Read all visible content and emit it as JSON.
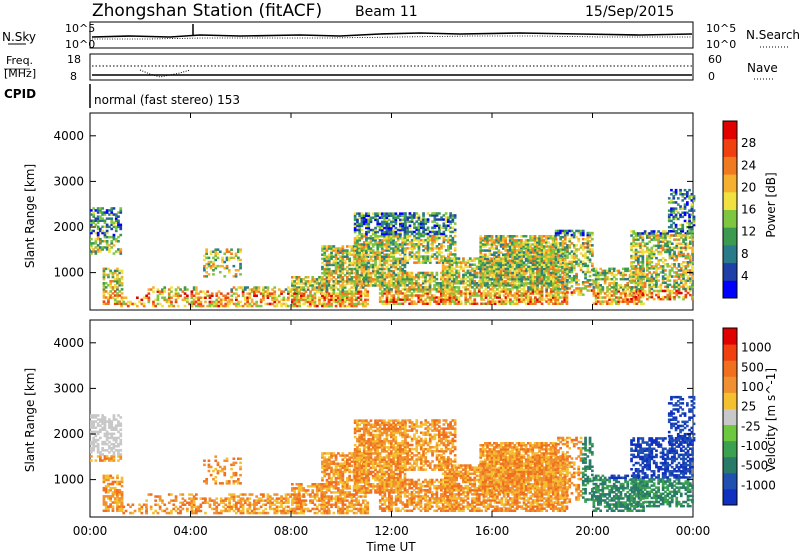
{
  "header": {
    "station_title": "Zhongshan Station (fitACF)",
    "beam": "Beam 11",
    "date": "15/Sep/2015"
  },
  "top_panels": {
    "nsky": {
      "label": "N.Sky",
      "ticks": [
        "10^5",
        "10^0"
      ]
    },
    "nsearch": {
      "label": "N.Search",
      "ticks": [
        "10^5",
        "10^0"
      ]
    },
    "freq": {
      "label_line1": "Freq.",
      "label_line2": "[MHz]",
      "ticks": [
        "18",
        "8"
      ]
    },
    "nave": {
      "label": "Nave",
      "ticks": [
        "60",
        "0"
      ]
    },
    "cpid": {
      "label": "CPID",
      "mode": "normal (fast stereo) 153"
    }
  },
  "chart_data": [
    {
      "type": "heatmap",
      "title": "",
      "xlabel": "",
      "ylabel": "Slant Range [km]",
      "xlim": [
        0,
        24
      ],
      "ylim": [
        180,
        4500
      ],
      "x_ticks": [
        "00:00",
        "04:00",
        "08:00",
        "12:00",
        "16:00",
        "20:00",
        "00:00"
      ],
      "y_ticks": [
        1000,
        2000,
        3000,
        4000
      ],
      "colorbar": {
        "label": "Power [dB]",
        "ticks": [
          "4",
          "8",
          "12",
          "16",
          "20",
          "24",
          "28"
        ],
        "colors": [
          "#0000ff",
          "#1e3fa8",
          "#2a7a8a",
          "#3b9a50",
          "#7fc640",
          "#f0e040",
          "#f5b030",
          "#f07a20",
          "#f04010",
          "#e00000"
        ]
      }
    },
    {
      "type": "heatmap",
      "title": "",
      "xlabel": "Time UT",
      "ylabel": "Slant Range [km]",
      "xlim": [
        0,
        24
      ],
      "ylim": [
        180,
        4500
      ],
      "x_ticks": [
        "00:00",
        "04:00",
        "08:00",
        "12:00",
        "16:00",
        "20:00",
        "00:00"
      ],
      "y_ticks": [
        1000,
        2000,
        3000,
        4000
      ],
      "colorbar": {
        "label": "Velocity [m s^-1]",
        "ticks": [
          "1000",
          "500",
          "100",
          "25",
          "-25",
          "-100",
          "-500",
          "-1000"
        ],
        "colors": [
          "#1030c0",
          "#2050b0",
          "#2a7a6a",
          "#3ba050",
          "#6dc840",
          "#c8c8c8",
          "#f5c030",
          "#f09030",
          "#f07020",
          "#f04010",
          "#e00000"
        ]
      }
    }
  ]
}
